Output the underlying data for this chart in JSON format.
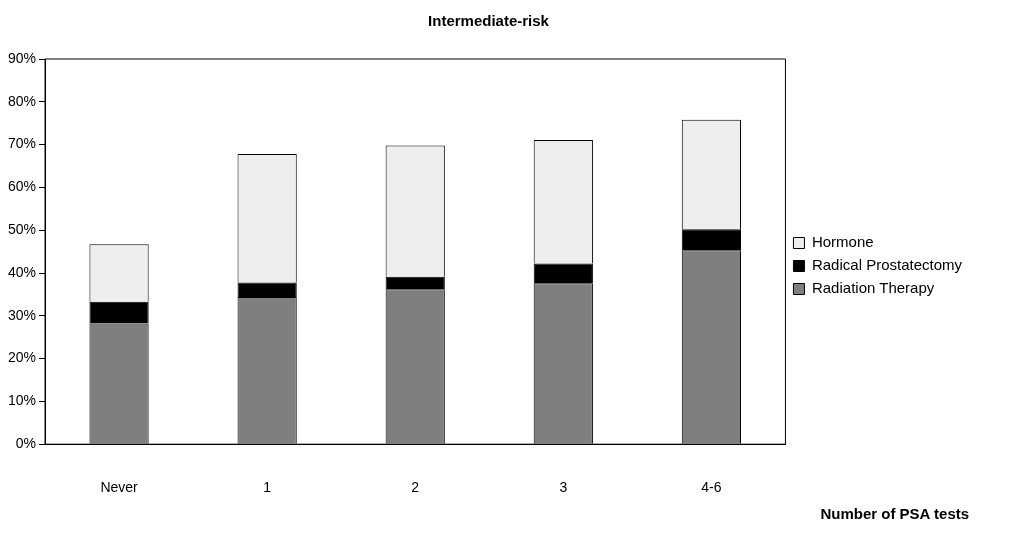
{
  "chart_data": {
    "type": "bar",
    "stacked": true,
    "title": "Intermediate-risk",
    "xlabel": "Number of PSA tests",
    "categories": [
      "Never",
      "1",
      "2",
      "3",
      "4-6"
    ],
    "series": [
      {
        "name": "Radiation Therapy",
        "color": "#7f7f7f",
        "values": [
          28.2,
          34.4,
          36.2,
          37.6,
          45.3
        ]
      },
      {
        "name": "Radical Prostatectomy",
        "color": "#000000",
        "values": [
          5.1,
          3.4,
          2.9,
          4.6,
          4.9
        ]
      },
      {
        "name": "Hormone",
        "color": "#eeeeee",
        "values": [
          13.4,
          30.0,
          30.7,
          28.9,
          25.6
        ]
      }
    ],
    "ylim": [
      0,
      90
    ],
    "yticks": [
      {
        "value": 0,
        "label": "0%"
      },
      {
        "value": 10,
        "label": "10%"
      },
      {
        "value": 20,
        "label": "20%"
      },
      {
        "value": 30,
        "label": "30%"
      },
      {
        "value": 40,
        "label": "40%"
      },
      {
        "value": 50,
        "label": "50%"
      },
      {
        "value": 60,
        "label": "60%"
      },
      {
        "value": 70,
        "label": "70%"
      },
      {
        "value": 80,
        "label": "80%"
      },
      {
        "value": 90,
        "label": "90%"
      }
    ],
    "grid": false,
    "legend": "right"
  }
}
